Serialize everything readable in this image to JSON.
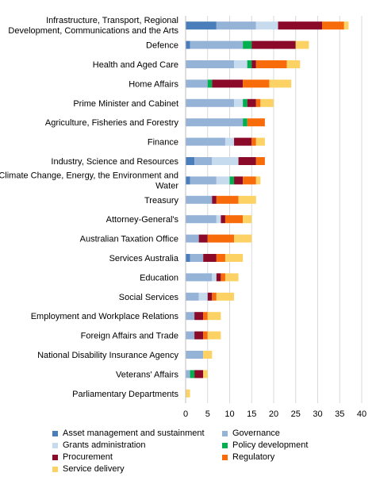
{
  "chart_data": {
    "type": "bar",
    "orientation": "horizontal",
    "stacked": true,
    "title": "",
    "xlabel": "",
    "ylabel": "",
    "xlim": [
      0,
      40
    ],
    "xticks": [
      "0",
      "5",
      "10",
      "15",
      "20",
      "25",
      "30",
      "35",
      "40"
    ],
    "grid": true,
    "legend_position": "bottom",
    "categories": [
      "Infrastructure, Transport, Regional Development, Communications and the Arts",
      "Defence",
      "Health and Aged Care",
      "Home Affairs",
      "Prime Minister and Cabinet",
      "Agriculture, Fisheries and Forestry",
      "Finance",
      "Industry, Science and Resources",
      "Climate Change, Energy, the Environment and Water",
      "Treasury",
      "Attorney-General's",
      "Australian Taxation Office",
      "Services Australia",
      "Education",
      "Social Services",
      "Employment and Workplace Relations",
      "Foreign Affairs and Trade",
      "National Disability Insurance Agency",
      "Veterans' Affairs",
      "Parliamentary Departments"
    ],
    "series": [
      {
        "name": "Asset management and sustainment",
        "color": "#4a7ebb",
        "values": [
          7,
          1,
          0,
          0,
          0,
          0,
          0,
          2,
          1,
          0,
          0,
          0,
          1,
          0,
          0,
          0,
          0,
          0,
          0,
          0
        ]
      },
      {
        "name": "Governance",
        "color": "#95b3d7",
        "values": [
          9,
          12,
          11,
          5,
          11,
          13,
          9,
          4,
          6,
          6,
          7,
          3,
          3,
          6,
          3,
          2,
          2,
          4,
          1,
          0
        ]
      },
      {
        "name": "Grants administration",
        "color": "#c6dcee",
        "values": [
          5,
          0,
          3,
          0,
          2,
          0,
          2,
          6,
          3,
          0,
          1,
          0,
          0,
          1,
          2,
          0,
          0,
          0,
          0,
          0
        ]
      },
      {
        "name": "Policy development",
        "color": "#00b050",
        "values": [
          0,
          2,
          1,
          1,
          1,
          1,
          0,
          0,
          1,
          0,
          0,
          0,
          0,
          0,
          0,
          0,
          0,
          0,
          1,
          0
        ]
      },
      {
        "name": "Procurement",
        "color": "#8b0a29",
        "values": [
          10,
          10,
          1,
          7,
          2,
          0,
          4,
          4,
          2,
          1,
          1,
          2,
          3,
          1,
          1,
          2,
          2,
          0,
          2,
          0
        ]
      },
      {
        "name": "Regulatory",
        "color": "#f76b0a",
        "values": [
          5,
          0,
          7,
          6,
          1,
          4,
          1,
          2,
          3,
          5,
          4,
          6,
          2,
          1,
          1,
          1,
          1,
          0,
          0,
          0
        ]
      },
      {
        "name": "Service delivery",
        "color": "#fcd265",
        "values": [
          1,
          3,
          3,
          5,
          3,
          0,
          2,
          0,
          1,
          4,
          2,
          4,
          4,
          3,
          4,
          3,
          3,
          2,
          1,
          1
        ]
      }
    ]
  }
}
